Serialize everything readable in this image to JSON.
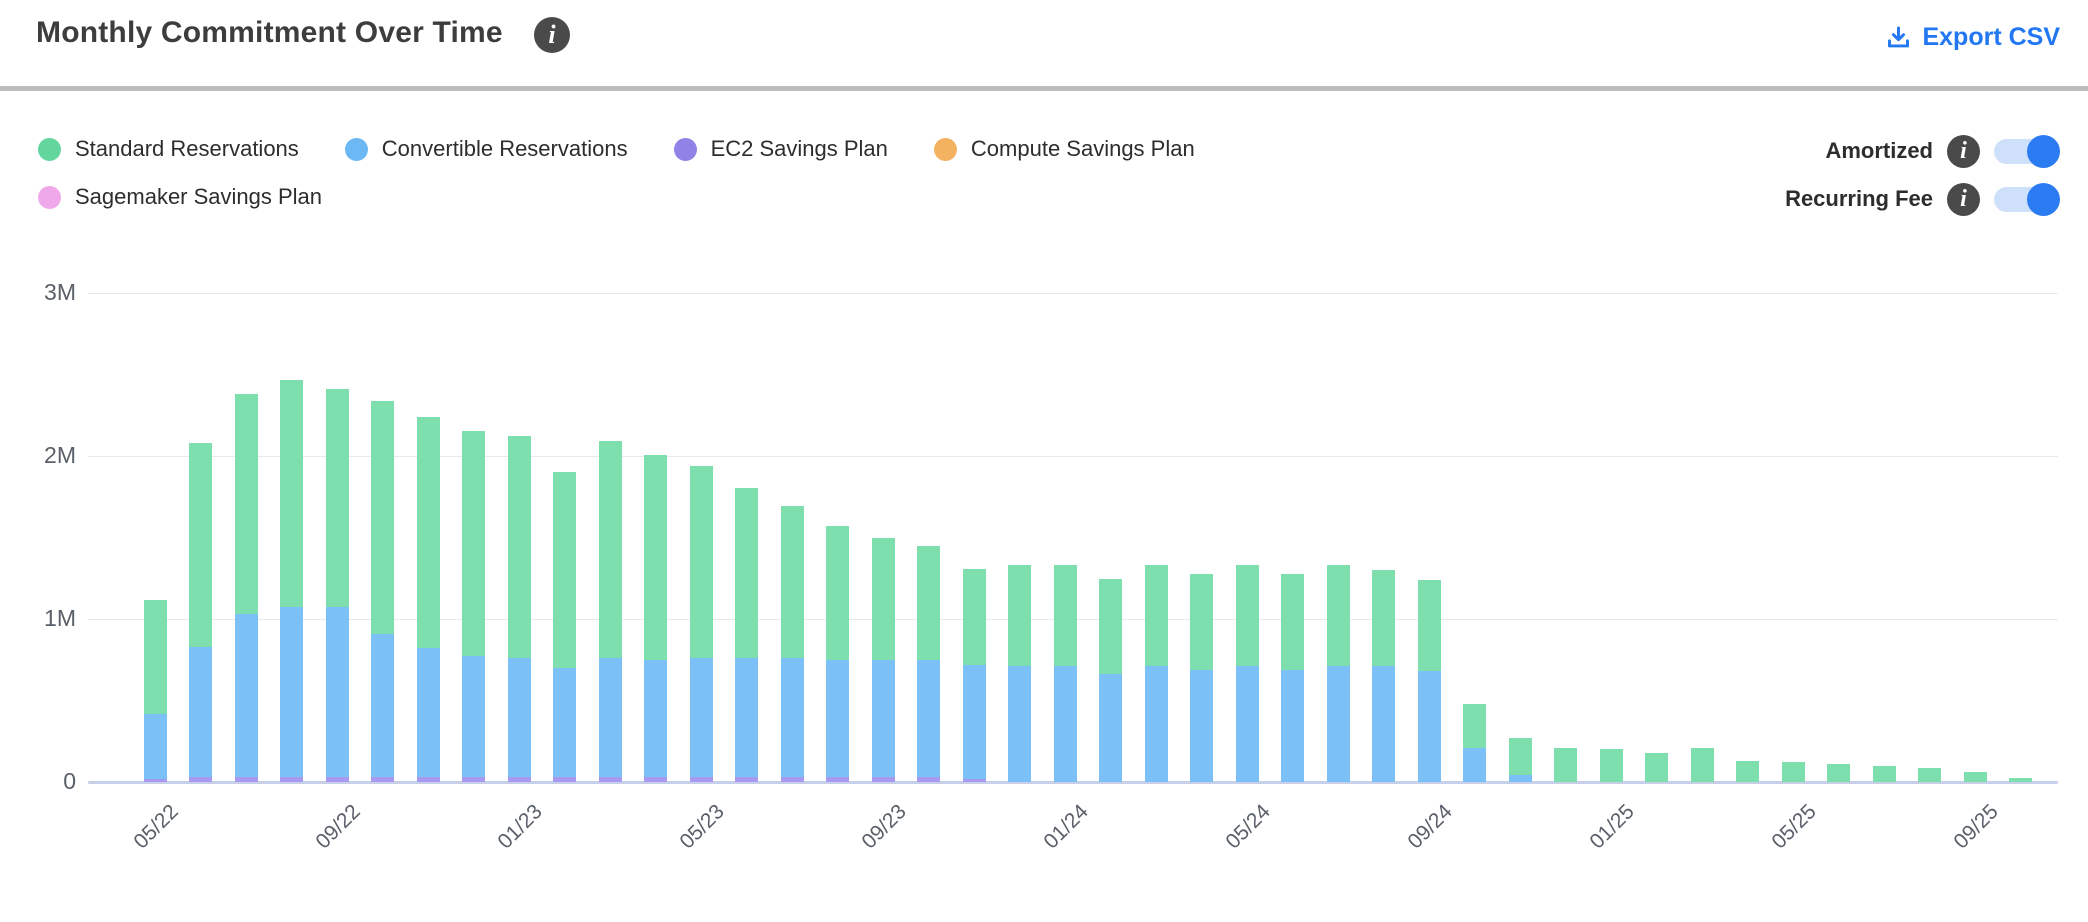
{
  "header": {
    "title": "Monthly Commitment Over Time",
    "export_label": "Export CSV"
  },
  "legend": {
    "items": [
      {
        "key": "standard",
        "label": "Standard Reservations",
        "color": "#63d69e"
      },
      {
        "key": "convertible",
        "label": "Convertible Reservations",
        "color": "#6cb8f5"
      },
      {
        "key": "ec2_sp",
        "label": "EC2 Savings Plan",
        "color": "#9083e8"
      },
      {
        "key": "compute_sp",
        "label": "Compute Savings Plan",
        "color": "#f3b25f"
      },
      {
        "key": "sagemaker_sp",
        "label": "Sagemaker Savings Plan",
        "color": "#efa9ea"
      }
    ]
  },
  "controls": {
    "toggles": [
      {
        "label": "Amortized",
        "state": "on"
      },
      {
        "label": "Recurring Fee",
        "state": "on"
      }
    ],
    "toggle_on_color": "#2b7cf2",
    "toggle_track_color": "#cfe0fa"
  },
  "colors": {
    "export_link": "#2277f3",
    "info_icon": "#4a4a4a",
    "bar_standard": "#7cdfad",
    "bar_convertible": "#7cc0f8",
    "bar_ec2_sp": "#a89af0",
    "gridline": "#e9e9e9",
    "zero_axis": "#c7d0e8"
  },
  "chart_data": {
    "type": "bar",
    "stacked": true,
    "unit": "M (millions USD)",
    "ylim": [
      0,
      3000000
    ],
    "yticks": [
      "0",
      "1M",
      "2M",
      "3M"
    ],
    "grid": true,
    "legend_position": "top-left",
    "x_tick_label_rotation": -45,
    "x_tick_labels_shown": [
      "05/22",
      "09/22",
      "01/23",
      "05/23",
      "09/23",
      "01/24",
      "05/24",
      "09/24",
      "01/25",
      "05/25",
      "09/25"
    ],
    "categories": [
      "05/22",
      "06/22",
      "07/22",
      "08/22",
      "09/22",
      "10/22",
      "11/22",
      "12/22",
      "01/23",
      "02/23",
      "03/23",
      "04/23",
      "05/23",
      "06/23",
      "07/23",
      "08/23",
      "09/23",
      "10/23",
      "11/23",
      "12/23",
      "01/24",
      "02/24",
      "03/24",
      "04/24",
      "05/24",
      "06/24",
      "07/24",
      "08/24",
      "09/24",
      "10/24",
      "11/24",
      "12/24",
      "01/25",
      "02/25",
      "03/25",
      "04/25",
      "05/25",
      "06/25",
      "07/25",
      "08/25",
      "09/25",
      "10/25"
    ],
    "series": [
      {
        "name": "Standard Reservations",
        "key": "standard",
        "values_millions": [
          0.7,
          1.25,
          1.35,
          1.39,
          1.34,
          1.43,
          1.42,
          1.38,
          1.36,
          1.2,
          1.33,
          1.26,
          1.18,
          1.04,
          0.93,
          0.82,
          0.75,
          0.7,
          0.59,
          0.62,
          0.62,
          0.58,
          0.62,
          0.59,
          0.62,
          0.59,
          0.62,
          0.59,
          0.56,
          0.27,
          0.225,
          0.21,
          0.2,
          0.18,
          0.21,
          0.13,
          0.12,
          0.11,
          0.1,
          0.085,
          0.06,
          0.025
        ]
      },
      {
        "name": "Convertible Reservations",
        "key": "convertible",
        "values_millions": [
          0.4,
          0.8,
          1.0,
          1.04,
          1.04,
          0.88,
          0.79,
          0.74,
          0.73,
          0.67,
          0.73,
          0.72,
          0.73,
          0.73,
          0.73,
          0.72,
          0.72,
          0.72,
          0.7,
          0.71,
          0.71,
          0.66,
          0.71,
          0.69,
          0.71,
          0.69,
          0.71,
          0.71,
          0.68,
          0.21,
          0.045,
          0,
          0,
          0,
          0,
          0,
          0,
          0,
          0,
          0,
          0,
          0
        ]
      },
      {
        "name": "EC2 Savings Plan",
        "key": "ec2_sp",
        "values_millions": [
          0.02,
          0.03,
          0.03,
          0.03,
          0.03,
          0.03,
          0.03,
          0.03,
          0.03,
          0.03,
          0.03,
          0.03,
          0.03,
          0.03,
          0.03,
          0.03,
          0.03,
          0.03,
          0.02,
          0,
          0,
          0,
          0,
          0,
          0,
          0,
          0,
          0,
          0,
          0,
          0,
          0,
          0,
          0,
          0,
          0,
          0,
          0,
          0,
          0,
          0,
          0
        ]
      },
      {
        "name": "Compute Savings Plan",
        "key": "compute_sp",
        "values_millions": [
          0,
          0,
          0,
          0,
          0,
          0,
          0,
          0,
          0,
          0,
          0,
          0,
          0,
          0,
          0,
          0,
          0,
          0,
          0,
          0,
          0,
          0,
          0,
          0,
          0,
          0,
          0,
          0,
          0,
          0,
          0,
          0,
          0,
          0,
          0,
          0,
          0,
          0,
          0,
          0,
          0,
          0
        ]
      },
      {
        "name": "Sagemaker Savings Plan",
        "key": "sagemaker_sp",
        "values_millions": [
          0,
          0,
          0,
          0,
          0,
          0,
          0,
          0,
          0,
          0,
          0,
          0,
          0,
          0,
          0,
          0,
          0,
          0,
          0,
          0,
          0,
          0,
          0,
          0,
          0,
          0,
          0,
          0,
          0,
          0,
          0,
          0,
          0,
          0,
          0,
          0,
          0,
          0,
          0,
          0,
          0,
          0
        ]
      }
    ]
  }
}
